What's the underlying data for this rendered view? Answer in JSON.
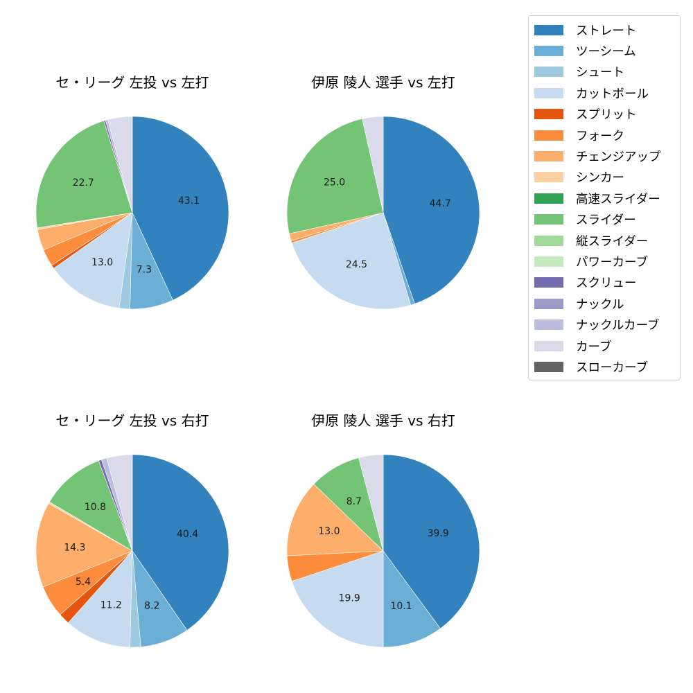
{
  "figure": {
    "legend": {
      "items": [
        {
          "label": "ストレート",
          "color": "#3182bd"
        },
        {
          "label": "ツーシーム",
          "color": "#6baed6"
        },
        {
          "label": "シュート",
          "color": "#9ecae1"
        },
        {
          "label": "カットボール",
          "color": "#c6dbef"
        },
        {
          "label": "スプリット",
          "color": "#e6550d"
        },
        {
          "label": "フォーク",
          "color": "#fd8d3c"
        },
        {
          "label": "チェンジアップ",
          "color": "#fdae6b"
        },
        {
          "label": "シンカー",
          "color": "#fdd0a2"
        },
        {
          "label": "高速スライダー",
          "color": "#31a354"
        },
        {
          "label": "スライダー",
          "color": "#74c476"
        },
        {
          "label": "縦スライダー",
          "color": "#a1d99b"
        },
        {
          "label": "パワーカーブ",
          "color": "#c7e9c0"
        },
        {
          "label": "スクリュー",
          "color": "#756bb1"
        },
        {
          "label": "ナックル",
          "color": "#9e9ac8"
        },
        {
          "label": "ナックルカーブ",
          "color": "#bcbddc"
        },
        {
          "label": "カーブ",
          "color": "#dadaeb"
        },
        {
          "label": "スローカーブ",
          "color": "#636363"
        }
      ]
    }
  },
  "chart_data": [
    {
      "type": "pie",
      "title": "セ・リーグ 左投 vs 左打",
      "start_angle": 90,
      "direction": "clockwise",
      "label_threshold": 5,
      "slices": [
        {
          "label": "ストレート",
          "value": 43.1
        },
        {
          "label": "ツーシーム",
          "value": 7.3
        },
        {
          "label": "シュート",
          "value": 1.8
        },
        {
          "label": "カットボール",
          "value": 13.0
        },
        {
          "label": "スプリット",
          "value": 0.6
        },
        {
          "label": "フォーク",
          "value": 2.9
        },
        {
          "label": "チェンジアップ",
          "value": 3.5
        },
        {
          "label": "シンカー",
          "value": 0.3
        },
        {
          "label": "スライダー",
          "value": 22.7
        },
        {
          "label": "スクリュー",
          "value": 0.3
        },
        {
          "label": "ナックルカーブ",
          "value": 0.4
        },
        {
          "label": "カーブ",
          "value": 4.1
        }
      ]
    },
    {
      "type": "pie",
      "title": "伊原 陵人 選手 vs 左打",
      "start_angle": 90,
      "direction": "clockwise",
      "label_threshold": 5,
      "slices": [
        {
          "label": "ストレート",
          "value": 44.7
        },
        {
          "label": "ツーシーム",
          "value": 0.7
        },
        {
          "label": "カットボール",
          "value": 24.5
        },
        {
          "label": "フォーク",
          "value": 0.4
        },
        {
          "label": "チェンジアップ",
          "value": 1.2
        },
        {
          "label": "スライダー",
          "value": 25.0
        },
        {
          "label": "カーブ",
          "value": 3.5
        }
      ]
    },
    {
      "type": "pie",
      "title": "セ・リーグ 左投 vs 右打",
      "start_angle": 90,
      "direction": "clockwise",
      "label_threshold": 5,
      "slices": [
        {
          "label": "ストレート",
          "value": 40.4
        },
        {
          "label": "ツーシーム",
          "value": 8.2
        },
        {
          "label": "シュート",
          "value": 1.8
        },
        {
          "label": "カットボール",
          "value": 11.2
        },
        {
          "label": "スプリット",
          "value": 1.9
        },
        {
          "label": "フォーク",
          "value": 5.4
        },
        {
          "label": "チェンジアップ",
          "value": 14.3
        },
        {
          "label": "シンカー",
          "value": 0.3
        },
        {
          "label": "スライダー",
          "value": 10.8
        },
        {
          "label": "スクリュー",
          "value": 0.5
        },
        {
          "label": "ナックルカーブ",
          "value": 0.9
        },
        {
          "label": "カーブ",
          "value": 4.3
        }
      ]
    },
    {
      "type": "pie",
      "title": "伊原 陵人 選手 vs 右打",
      "start_angle": 90,
      "direction": "clockwise",
      "label_threshold": 5,
      "slices": [
        {
          "label": "ストレート",
          "value": 39.9
        },
        {
          "label": "ツーシーム",
          "value": 10.1
        },
        {
          "label": "カットボール",
          "value": 19.9
        },
        {
          "label": "フォーク",
          "value": 4.3
        },
        {
          "label": "チェンジアップ",
          "value": 13.0
        },
        {
          "label": "スライダー",
          "value": 8.7
        },
        {
          "label": "カーブ",
          "value": 4.1
        }
      ]
    }
  ]
}
